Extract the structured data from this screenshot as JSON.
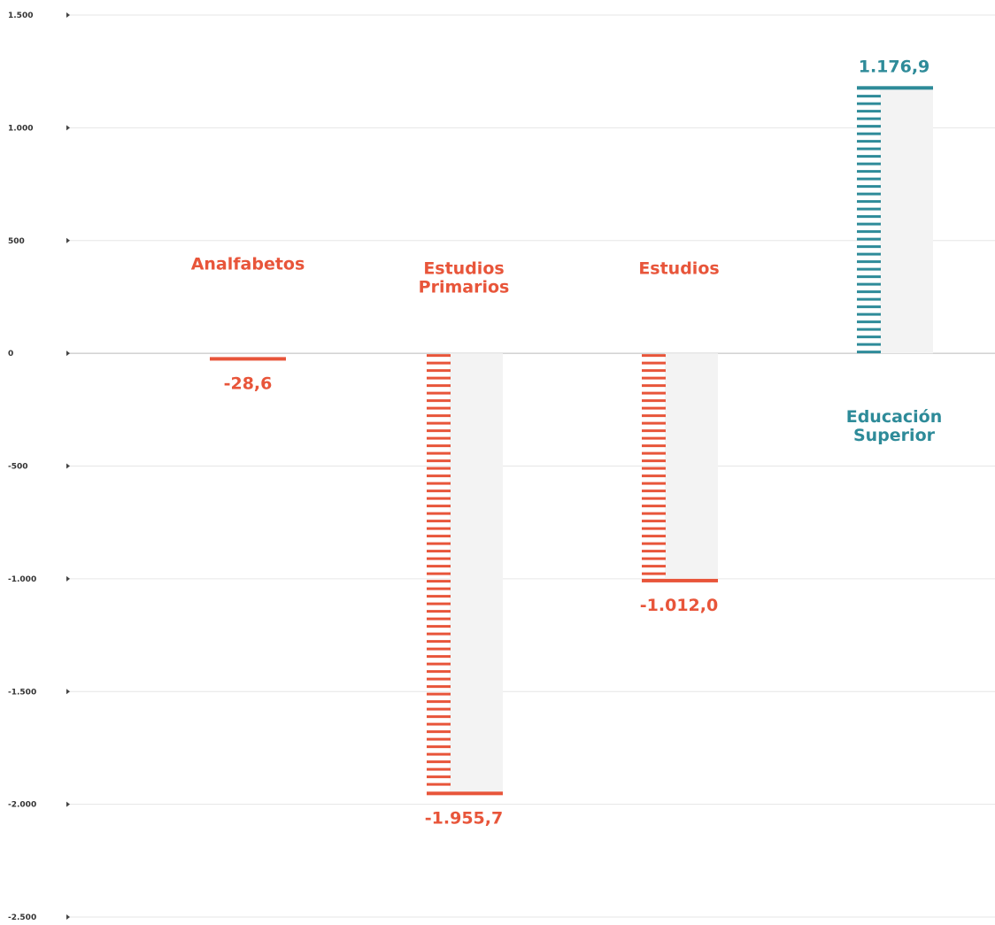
{
  "chart_data": {
    "type": "bar",
    "categories": [
      [
        "Analfabetos"
      ],
      [
        "Estudios",
        "Primarios"
      ],
      [
        "Estudios"
      ],
      [
        "Educación",
        "Superior"
      ]
    ],
    "values": [
      -28.6,
      -1955.7,
      -1012.0,
      1176.9
    ],
    "value_labels": [
      "-28,6",
      "-1.955,7",
      "-1.012,0",
      "1.176,9"
    ],
    "ylim": [
      -2500,
      1500
    ],
    "yticks": [
      1500,
      1000,
      500,
      0,
      -500,
      -1000,
      -1500,
      -2000,
      -2500
    ],
    "ytick_labels": [
      "1.500",
      "1.000",
      "500",
      "0",
      "-500",
      "-1.000",
      "-1.500",
      "-2.000",
      "-2.500"
    ],
    "grid": true,
    "colors": {
      "negative": "#e8553a",
      "positive": "#2e8b99",
      "shadow": "#f3f3f3",
      "grid": "#e6e6e6",
      "axis": "#bbbbbb"
    }
  }
}
